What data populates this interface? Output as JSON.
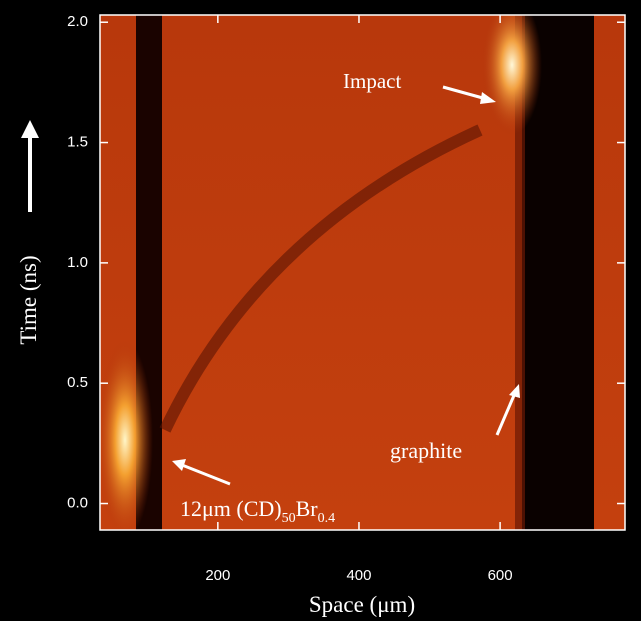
{
  "chart_data": {
    "type": "image",
    "xlabel": "Space (μm)",
    "ylabel": "Time (ns)",
    "xlim": [
      33,
      777
    ],
    "xticks": [
      200,
      400,
      600
    ],
    "ylim": [
      -0.11,
      2.03
    ],
    "yticks": [
      {
        "value": 0,
        "label": "0.0"
      },
      {
        "value": 0.5,
        "label": "0.5"
      },
      {
        "value": 1,
        "label": "1.0"
      },
      {
        "value": 1.5,
        "label": "1.5"
      },
      {
        "value": 2,
        "label": "2.0"
      }
    ],
    "annotations": {
      "impact": "Impact",
      "graphite": "graphite",
      "target": [
        "12μm (CD)",
        "50",
        "Br",
        "0.4"
      ]
    }
  }
}
